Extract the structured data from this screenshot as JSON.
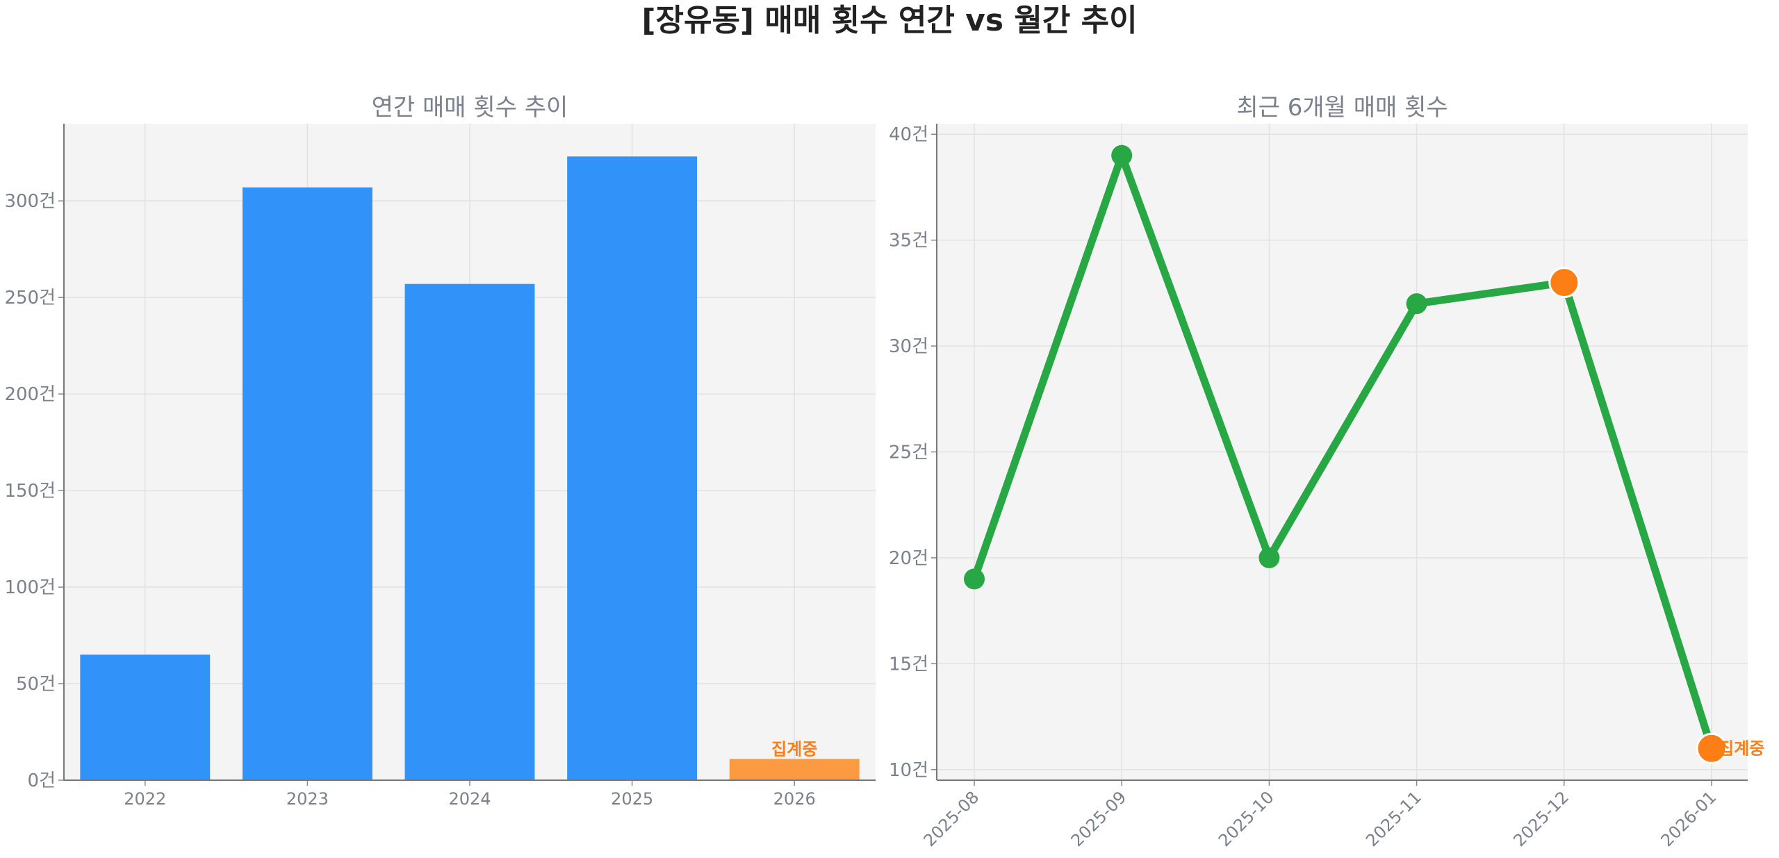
{
  "figure_title": "[장유동] 매매 횟수 연간 vs 월간 추이",
  "colors": {
    "bar": "#3192fa",
    "bar_partial": "#fb9a40",
    "line": "#28a745",
    "highlight": "#fd7e14",
    "panel_bg": "#f4f4f4",
    "text_muted": "#7a808c"
  },
  "chart_data": [
    {
      "type": "bar",
      "title": "연간 매매 횟수 추이",
      "categories": [
        "2022",
        "2023",
        "2024",
        "2025",
        "2026"
      ],
      "values": [
        65,
        307,
        257,
        323,
        11
      ],
      "partial_index": 4,
      "partial_label": "집계중",
      "ylim": [
        0,
        340
      ],
      "yticks": [
        0,
        50,
        100,
        150,
        200,
        250,
        300
      ],
      "ytick_labels": [
        "0건",
        "50건",
        "100건",
        "150건",
        "200건",
        "250건",
        "300건"
      ],
      "xlabel": "",
      "ylabel": "",
      "grid": true
    },
    {
      "type": "line",
      "title": "최근 6개월 매매 횟수",
      "categories": [
        "2025-08",
        "2025-09",
        "2025-10",
        "2025-11",
        "2025-12",
        "2026-01"
      ],
      "values": [
        19,
        39,
        20,
        32,
        33,
        11
      ],
      "highlight_indices": [
        4,
        5
      ],
      "partial_index": 5,
      "partial_label": "집계중",
      "ylim": [
        9.5,
        40.5
      ],
      "yticks": [
        10,
        15,
        20,
        25,
        30,
        35,
        40
      ],
      "ytick_labels": [
        "10건",
        "15건",
        "20건",
        "25건",
        "30건",
        "35건",
        "40건"
      ],
      "xlabel": "",
      "ylabel": "",
      "grid": true
    }
  ]
}
